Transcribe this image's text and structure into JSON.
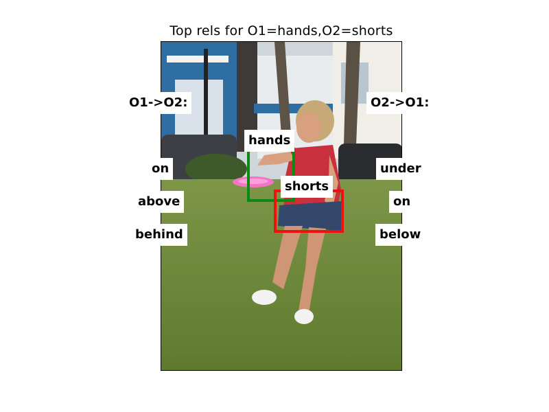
{
  "title": "Top rels for O1=hands,O2=shorts",
  "o1_to_o2": {
    "header": "O1->O2:",
    "rels": [
      "on",
      "above",
      "behind"
    ]
  },
  "o2_to_o1": {
    "header": "O2->O1:",
    "rels": [
      "under",
      "on",
      "below"
    ]
  },
  "boxes": {
    "o1_label": "hands",
    "o2_label": "shorts",
    "o1_color": "#0a8a12",
    "o2_color": "#ee1111"
  }
}
